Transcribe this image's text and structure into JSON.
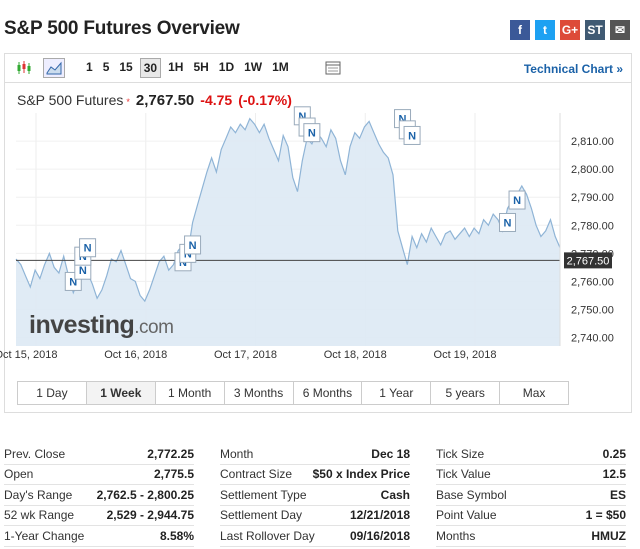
{
  "header": {
    "title": "S&P 500 Futures Overview"
  },
  "share": [
    {
      "name": "facebook-icon",
      "glyph": "f",
      "color": "#3b5998"
    },
    {
      "name": "twitter-icon",
      "glyph": "t",
      "color": "#1da1f2"
    },
    {
      "name": "google-plus-icon",
      "glyph": "G+",
      "color": "#dd4b39"
    },
    {
      "name": "stocktwits-icon",
      "glyph": "ST",
      "color": "#405a73"
    },
    {
      "name": "email-icon",
      "glyph": "✉",
      "color": "#555"
    }
  ],
  "toolbar": {
    "timeframes": [
      "1",
      "5",
      "15",
      "30",
      "1H",
      "5H",
      "1D",
      "1W",
      "1M"
    ],
    "selected_timeframe": "30",
    "technical_chart": "Technical Chart »"
  },
  "quote": {
    "name": "S&P 500 Futures",
    "marker": "*",
    "last": "2,767.50",
    "change": "-4.75",
    "change_pct": "(-0.17%)",
    "down_color": "#d11"
  },
  "logo": {
    "main": "investing",
    "domain": ".com"
  },
  "ranges": [
    "1 Day",
    "1 Week",
    "1 Month",
    "3 Months",
    "6 Months",
    "1 Year",
    "5 years",
    "Max"
  ],
  "selected_range": "1 Week",
  "chart_data": {
    "type": "area",
    "x_labels": [
      "Oct 15, 2018",
      "Oct 16, 2018",
      "Oct 17, 2018",
      "Oct 18, 2018",
      "Oct 19, 2018"
    ],
    "y_ticks": [
      "2,740.00",
      "2,750.00",
      "2,760.00",
      "2,770.00",
      "2,780.00",
      "2,790.00",
      "2,800.00",
      "2,810.00"
    ],
    "ylim": [
      2737,
      2820
    ],
    "current_price_label": "2,767.50",
    "current_value": 2767.5,
    "values": [
      2768,
      2766,
      2762,
      2758,
      2764,
      2761,
      2766,
      2770,
      2765,
      2763,
      2769,
      2762,
      2756,
      2760,
      2766,
      2763,
      2759,
      2754,
      2757,
      2762,
      2768,
      2767,
      2771,
      2766,
      2761,
      2760,
      2755,
      2753,
      2757,
      2762,
      2767,
      2769,
      2764,
      2766,
      2771,
      2773,
      2770,
      2781,
      2787,
      2793,
      2799,
      2804,
      2799,
      2807,
      2811,
      2815,
      2813,
      2816,
      2814,
      2818,
      2816,
      2813,
      2816,
      2811,
      2807,
      2803,
      2812,
      2808,
      2797,
      2792,
      2803,
      2811,
      2809,
      2813,
      2811,
      2808,
      2814,
      2811,
      2803,
      2798,
      2808,
      2813,
      2811,
      2815,
      2817,
      2813,
      2809,
      2806,
      2804,
      2798,
      2778,
      2772,
      2766,
      2776,
      2772,
      2777,
      2774,
      2779,
      2776,
      2773,
      2777,
      2778,
      2775,
      2777,
      2779,
      2776,
      2779,
      2777,
      2782,
      2780,
      2784,
      2782,
      2778,
      2786,
      2789,
      2791,
      2794,
      2791,
      2786,
      2780,
      2776,
      2778,
      2782,
      2776,
      2772
    ],
    "markers": [
      {
        "label": "N",
        "x": 12,
        "y": 2760
      },
      {
        "label": "N",
        "x": 14,
        "y": 2764
      },
      {
        "label": "N",
        "x": 14,
        "y": 2769
      },
      {
        "label": "N",
        "x": 15,
        "y": 2772
      },
      {
        "label": "N",
        "x": 35,
        "y": 2767
      },
      {
        "label": "N",
        "x": 36,
        "y": 2770
      },
      {
        "label": "N",
        "x": 37,
        "y": 2773
      },
      {
        "label": "N",
        "x": 60,
        "y": 2819
      },
      {
        "label": "N",
        "x": 61,
        "y": 2815
      },
      {
        "label": "N",
        "x": 62,
        "y": 2813
      },
      {
        "label": "N",
        "x": 81,
        "y": 2818
      },
      {
        "label": "N",
        "x": 82,
        "y": 2814
      },
      {
        "label": "N",
        "x": 83,
        "y": 2812
      },
      {
        "label": "N",
        "x": 103,
        "y": 2781
      },
      {
        "label": "N",
        "x": 105,
        "y": 2789
      }
    ]
  },
  "stats": {
    "col1": [
      {
        "k": "Prev. Close",
        "v": "2,772.25"
      },
      {
        "k": "Open",
        "v": "2,775.5"
      },
      {
        "k": "Day's Range",
        "v": "2,762.5 - 2,800.25"
      },
      {
        "k": "52 wk Range",
        "v": "2,529 - 2,944.75"
      },
      {
        "k": "1-Year Change",
        "v": "8.58%"
      }
    ],
    "col2": [
      {
        "k": "Month",
        "v": "Dec 18"
      },
      {
        "k": "Contract Size",
        "v": "$50 x Index Price"
      },
      {
        "k": "Settlement Type",
        "v": "Cash"
      },
      {
        "k": "Settlement Day",
        "v": "12/21/2018"
      },
      {
        "k": "Last Rollover Day",
        "v": "09/16/2018"
      }
    ],
    "col3": [
      {
        "k": "Tick Size",
        "v": "0.25"
      },
      {
        "k": "Tick Value",
        "v": "12.5"
      },
      {
        "k": "Base Symbol",
        "v": "ES"
      },
      {
        "k": "Point Value",
        "v": "1 = $50"
      },
      {
        "k": "Months",
        "v": "HMUZ"
      }
    ]
  }
}
